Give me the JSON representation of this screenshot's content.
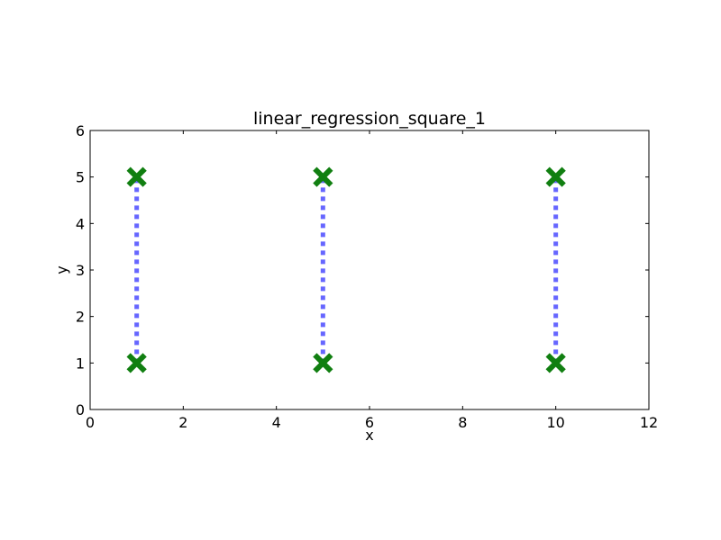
{
  "chart_data": {
    "type": "scatter",
    "title": "linear_regression_square_1",
    "xlabel": "x",
    "ylabel": "y",
    "xlim": [
      0,
      12
    ],
    "ylim": [
      0,
      6
    ],
    "x_ticks": [
      0,
      2,
      4,
      6,
      8,
      10,
      12
    ],
    "y_ticks": [
      0,
      1,
      2,
      3,
      4,
      5,
      6
    ],
    "grid": false,
    "legend": "none",
    "points": [
      {
        "x": 1,
        "y": 1
      },
      {
        "x": 1,
        "y": 5
      },
      {
        "x": 5,
        "y": 1
      },
      {
        "x": 5,
        "y": 5
      },
      {
        "x": 10,
        "y": 1
      },
      {
        "x": 10,
        "y": 5
      }
    ],
    "segments": [
      {
        "x": [
          1,
          1
        ],
        "y": [
          1,
          5
        ]
      },
      {
        "x": [
          5,
          5
        ],
        "y": [
          1,
          5
        ]
      },
      {
        "x": [
          10,
          10
        ],
        "y": [
          1,
          5
        ]
      }
    ],
    "colors": {
      "marker": "#117f11",
      "line": "#6666ff",
      "axes": "#000000"
    }
  }
}
